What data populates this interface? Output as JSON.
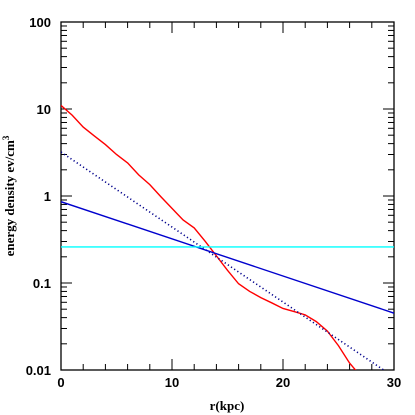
{
  "chart_data": {
    "type": "line",
    "title": "",
    "xlabel": "r(kpc)",
    "ylabel_main": "energy density ev/cm",
    "ylabel_sup": "3",
    "xlim": [
      0,
      30
    ],
    "ylim": [
      0.01,
      100
    ],
    "yscale": "log",
    "grid": false,
    "x_ticks": [
      0,
      10,
      20,
      30
    ],
    "x_tick_labels": [
      "0",
      "10",
      "20",
      "30"
    ],
    "y_ticks": [
      0.01,
      0.1,
      1,
      10,
      100
    ],
    "y_tick_labels": [
      "0.01",
      "0.1",
      "1",
      "10",
      "100"
    ],
    "series": [
      {
        "color": "#ff0000",
        "style": "solid",
        "x": [
          0,
          1,
          2,
          3,
          4,
          5,
          6,
          7,
          8,
          9,
          10,
          11,
          12,
          13,
          14,
          15,
          16,
          17,
          18,
          19,
          20,
          21,
          22,
          23,
          24,
          25,
          26,
          27
        ],
        "y": [
          11.0,
          8.5,
          6.2,
          4.9,
          3.9,
          3.0,
          2.4,
          1.75,
          1.35,
          0.98,
          0.72,
          0.53,
          0.43,
          0.3,
          0.205,
          0.14,
          0.098,
          0.08,
          0.068,
          0.059,
          0.051,
          0.047,
          0.043,
          0.036,
          0.028,
          0.019,
          0.012,
          0.0085
        ]
      },
      {
        "color": "#00008b",
        "style": "dotted",
        "x": [
          0,
          30
        ],
        "y": [
          3.2,
          0.0083
        ]
      },
      {
        "color": "#0000cd",
        "style": "solid",
        "x": [
          0,
          30
        ],
        "y": [
          0.86,
          0.045
        ]
      },
      {
        "color": "#00ffff",
        "style": "solid",
        "x": [
          0,
          30
        ],
        "y": [
          0.26,
          0.26
        ]
      }
    ]
  }
}
